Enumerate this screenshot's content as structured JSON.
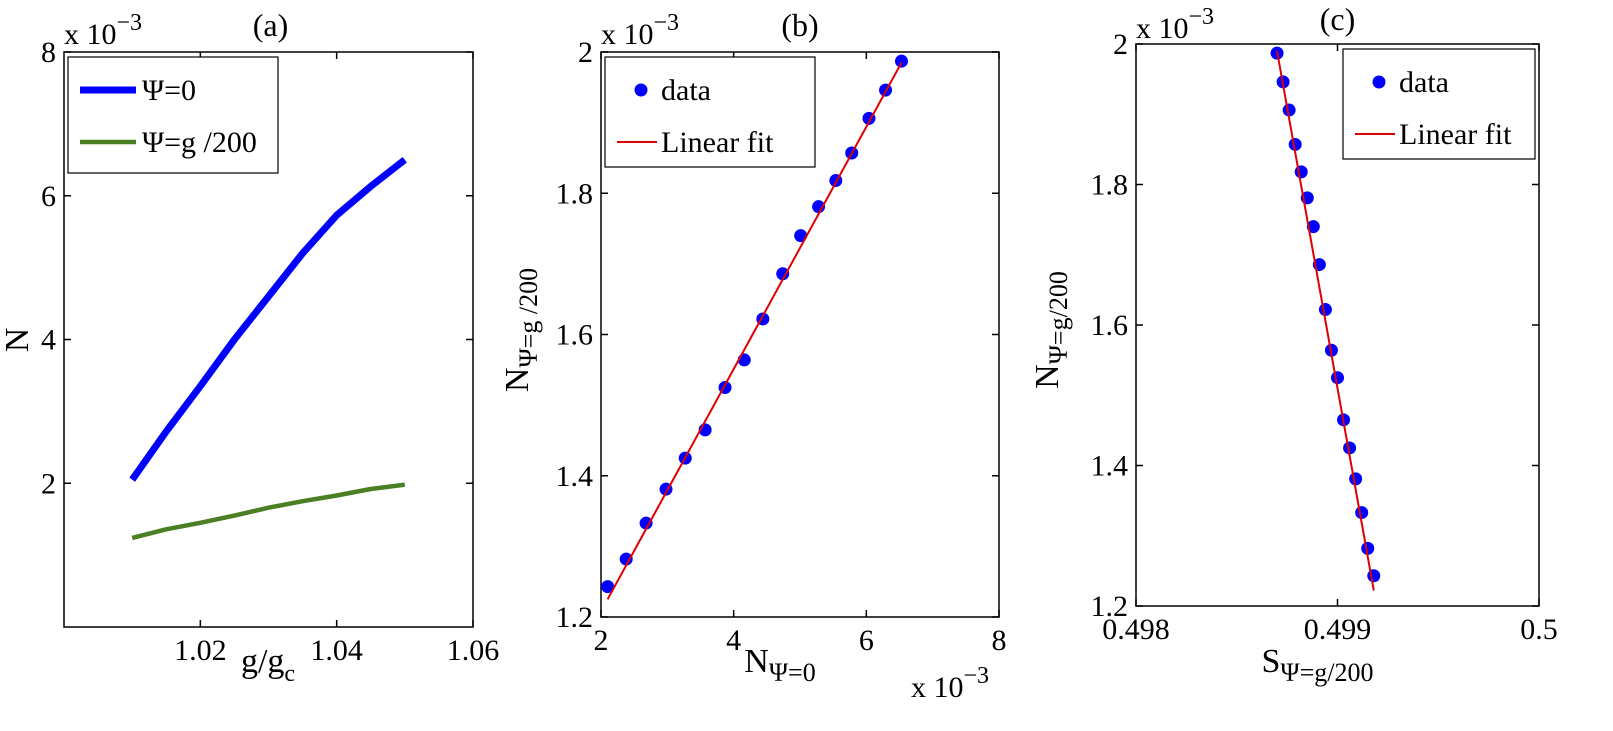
{
  "chart_data": [
    {
      "type": "line",
      "title": "(a)",
      "xlabel_main": "g/g",
      "xlabel_sub": "c",
      "ylabel": "N",
      "xlim": [
        1.0,
        1.06
      ],
      "ylim": [
        0,
        0.008
      ],
      "xtick_values": [
        1.02,
        1.04,
        1.06
      ],
      "xtick_labels": [
        "1.02",
        "1.04",
        "1.06"
      ],
      "ytick_values": [
        0.002,
        0.004,
        0.006,
        0.008
      ],
      "ytick_labels": [
        "2",
        "4",
        "6",
        "8"
      ],
      "y_exponent_base": "x 10",
      "y_exponent_power": "−3",
      "legend_position": "top-left",
      "series": [
        {
          "name": "Ψ=0",
          "color": "#0000ff",
          "style": "thick-line",
          "x": [
            1.01,
            1.015,
            1.02,
            1.025,
            1.03,
            1.035,
            1.04,
            1.045,
            1.05
          ],
          "y": [
            0.00205,
            0.00272,
            0.00335,
            0.004,
            0.0046,
            0.0052,
            0.00573,
            0.00613,
            0.0065
          ]
        },
        {
          "name": "Ψ=g /200",
          "color": "#4a7f24",
          "style": "line",
          "x": [
            1.01,
            1.015,
            1.02,
            1.025,
            1.03,
            1.035,
            1.04,
            1.045,
            1.05
          ],
          "y": [
            0.00124,
            0.00136,
            0.00145,
            0.00155,
            0.00166,
            0.00175,
            0.00183,
            0.00192,
            0.00198
          ]
        }
      ]
    },
    {
      "type": "scatter",
      "title": "(b)",
      "xlabel_main": "N",
      "xlabel_sub": "Ψ=0",
      "ylabel_main": "N",
      "ylabel_sub": "Ψ=g /200",
      "xlim": [
        0.002,
        0.008
      ],
      "ylim": [
        0.0012,
        0.002
      ],
      "xtick_values": [
        0.002,
        0.004,
        0.006,
        0.008
      ],
      "xtick_labels": [
        "2",
        "4",
        "6",
        "8"
      ],
      "ytick_values": [
        0.0012,
        0.0014,
        0.0016,
        0.0018,
        0.002
      ],
      "ytick_labels": [
        "1.2",
        "1.4",
        "1.6",
        "1.8",
        "2"
      ],
      "x_exponent_base": "x 10",
      "x_exponent_power": "−3",
      "y_exponent_base": "x 10",
      "y_exponent_power": "−3",
      "legend_position": "top-left",
      "series": [
        {
          "name": "data",
          "color": "#0000ff",
          "style": "dots",
          "x": [
            0.0021,
            0.00238,
            0.00268,
            0.00298,
            0.00327,
            0.00357,
            0.00387,
            0.00416,
            0.00444,
            0.00474,
            0.00501,
            0.00528,
            0.00554,
            0.00578,
            0.00604,
            0.00629,
            0.00653
          ],
          "y": [
            0.001243,
            0.001282,
            0.001333,
            0.001381,
            0.001425,
            0.001465,
            0.001525,
            0.001564,
            0.001622,
            0.001686,
            0.00174,
            0.001781,
            0.001818,
            0.001857,
            0.001906,
            0.001946,
            0.001987
          ]
        },
        {
          "name": "Linear fit",
          "color": "#e00000",
          "style": "thin-line",
          "x": [
            0.0021,
            0.00653
          ],
          "y": [
            0.001225,
            0.001985
          ]
        }
      ]
    },
    {
      "type": "scatter",
      "title": "(c)",
      "xlabel_main": "S",
      "xlabel_sub": "Ψ=g/200",
      "ylabel_main": "N",
      "ylabel_sub": "Ψ=g/200",
      "xlim": [
        0.498,
        0.5
      ],
      "ylim": [
        0.0012,
        0.002
      ],
      "xtick_values": [
        0.498,
        0.499,
        0.5
      ],
      "xtick_labels": [
        "0.498",
        "0.499",
        "0.5"
      ],
      "ytick_values": [
        0.0012,
        0.0014,
        0.0016,
        0.0018,
        0.002
      ],
      "ytick_labels": [
        "1.2",
        "1.4",
        "1.6",
        "1.8",
        "2"
      ],
      "y_exponent_base": "x 10",
      "y_exponent_power": "−3",
      "legend_position": "top-right",
      "series": [
        {
          "name": "data",
          "color": "#0000ff",
          "style": "dots",
          "x": [
            0.4987,
            0.49873,
            0.49876,
            0.49879,
            0.49882,
            0.49885,
            0.49888,
            0.49891,
            0.49894,
            0.49897,
            0.499,
            0.49903,
            0.49906,
            0.49909,
            0.49912,
            0.49915,
            0.49918
          ],
          "y": [
            0.001987,
            0.001946,
            0.001906,
            0.001857,
            0.001818,
            0.001781,
            0.00174,
            0.001686,
            0.001622,
            0.001564,
            0.001525,
            0.001465,
            0.001425,
            0.001381,
            0.001333,
            0.001282,
            0.001243
          ]
        },
        {
          "name": "Linear fit",
          "color": "#e00000",
          "style": "thin-line",
          "x": [
            0.4987,
            0.49918
          ],
          "y": [
            0.00199,
            0.001222
          ]
        }
      ]
    }
  ]
}
